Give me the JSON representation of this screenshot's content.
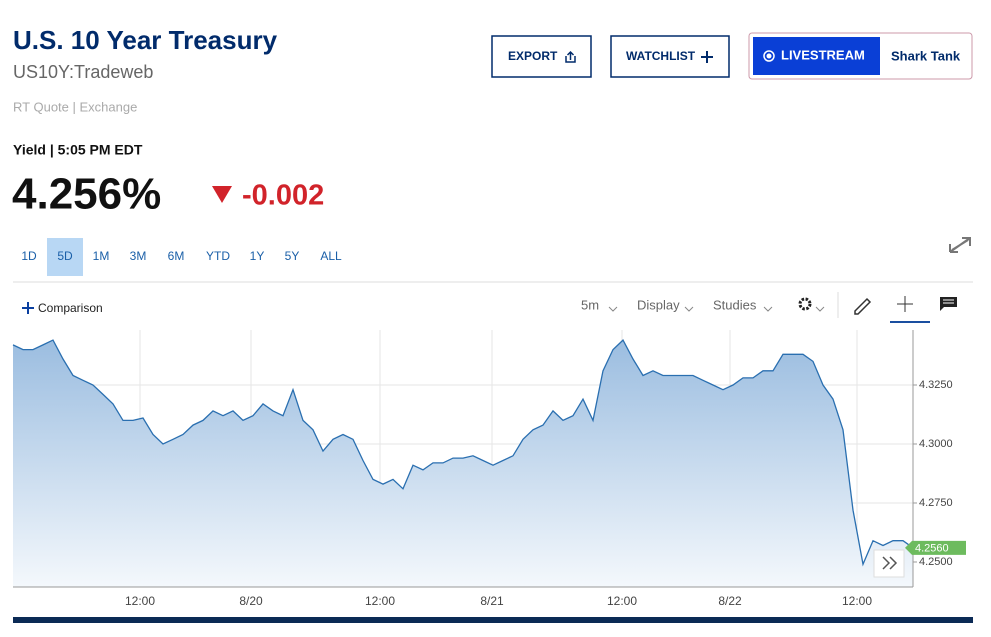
{
  "header": {
    "title": "U.S. 10 Year Treasury",
    "symbol": "US10Y:Tradeweb",
    "quote_source": "RT Quote | Exchange"
  },
  "buttons": {
    "export": "EXPORT",
    "watchlist": "WATCHLIST",
    "livestream": "LIVESTREAM",
    "show": "Shark Tank"
  },
  "quote": {
    "label": "Yield | 5:05 PM EDT",
    "price": "4.256%",
    "change": "-0.002"
  },
  "ranges": [
    "1D",
    "5D",
    "1M",
    "3M",
    "6M",
    "YTD",
    "1Y",
    "5Y",
    "ALL"
  ],
  "active_range": "5D",
  "toolbar": {
    "comparison": "Comparison",
    "interval": "5m",
    "display": "Display",
    "studies": "Studies"
  },
  "chart_data": {
    "type": "area",
    "color": "#2a6fb0",
    "values": [
      4.342,
      4.34,
      4.34,
      4.342,
      4.344,
      4.336,
      4.329,
      4.327,
      4.325,
      4.321,
      4.317,
      4.31,
      4.31,
      4.311,
      4.304,
      4.3,
      4.302,
      4.304,
      4.308,
      4.31,
      4.314,
      4.312,
      4.314,
      4.31,
      4.312,
      4.317,
      4.314,
      4.312,
      4.323,
      4.31,
      4.306,
      4.297,
      4.302,
      4.304,
      4.302,
      4.293,
      4.285,
      4.283,
      4.285,
      4.281,
      4.291,
      4.289,
      4.292,
      4.292,
      4.294,
      4.294,
      4.295,
      4.293,
      4.291,
      4.293,
      4.295,
      4.302,
      4.306,
      4.308,
      4.314,
      4.31,
      4.312,
      4.319,
      4.31,
      4.331,
      4.34,
      4.344,
      4.336,
      4.329,
      4.331,
      4.329,
      4.329,
      4.329,
      4.329,
      4.327,
      4.325,
      4.323,
      4.325,
      4.328,
      4.328,
      4.331,
      4.331,
      4.338,
      4.338,
      4.338,
      4.335,
      4.325,
      4.319,
      4.306,
      4.272,
      4.249,
      4.259,
      4.257,
      4.259,
      4.259,
      4.256
    ],
    "xlim": [
      0,
      90
    ],
    "xticks": [
      {
        "value": 12.7,
        "label": "12:00"
      },
      {
        "value": 23.8,
        "label": "8/20"
      },
      {
        "value": 36.7,
        "label": "12:00"
      },
      {
        "value": 47.9,
        "label": "8/21"
      },
      {
        "value": 60.9,
        "label": "12:00"
      },
      {
        "value": 71.7,
        "label": "8/22"
      },
      {
        "value": 84.4,
        "label": "12:00"
      }
    ],
    "ylim": [
      4.2394,
      4.3483
    ],
    "yticks": [
      {
        "value": 4.325,
        "label": "4.3250"
      },
      {
        "value": 4.3,
        "label": "4.3000"
      },
      {
        "value": 4.275,
        "label": "4.2750"
      },
      {
        "value": 4.25,
        "label": "4.2500"
      }
    ],
    "grid": true,
    "last_price": {
      "value": 4.256,
      "label": "4.2560"
    }
  }
}
